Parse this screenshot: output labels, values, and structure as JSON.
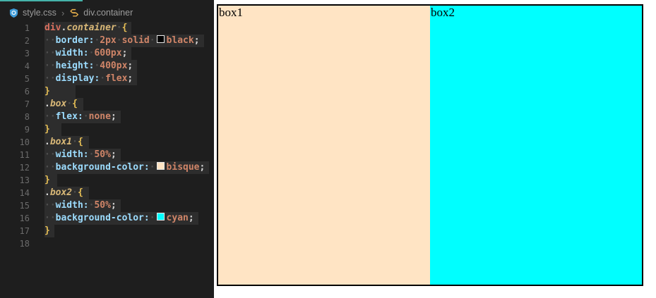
{
  "breadcrumb": {
    "file": "style.css",
    "separator": "›",
    "symbol": "div.container"
  },
  "editor": {
    "accent_color": "#45b3aa",
    "lines": [
      {
        "num": "1",
        "pad": 6,
        "tokens": [
          {
            "t": "el",
            "v": "div"
          },
          {
            "t": "dot",
            "v": "."
          },
          {
            "t": "cls",
            "v": "container"
          },
          {
            "t": "ws",
            "v": "·"
          },
          {
            "t": "brace",
            "v": "{"
          }
        ]
      },
      {
        "num": "2",
        "pad": 6,
        "tokens": [
          {
            "t": "ws",
            "v": "··"
          },
          {
            "t": "prop",
            "v": "border:"
          },
          {
            "t": "ws",
            "v": "·"
          },
          {
            "t": "val",
            "v": "2px"
          },
          {
            "t": "ws",
            "v": "·"
          },
          {
            "t": "val",
            "v": "solid"
          },
          {
            "t": "ws",
            "v": "·"
          },
          {
            "t": "swatch",
            "v": "#000000"
          },
          {
            "t": "val",
            "v": "black"
          },
          {
            "t": "semi",
            "v": ";"
          }
        ]
      },
      {
        "num": "3",
        "pad": 6,
        "tokens": [
          {
            "t": "ws",
            "v": "··"
          },
          {
            "t": "prop",
            "v": "width:"
          },
          {
            "t": "ws",
            "v": "·"
          },
          {
            "t": "val",
            "v": "600px"
          },
          {
            "t": "semi",
            "v": ";"
          }
        ]
      },
      {
        "num": "4",
        "pad": 6,
        "tokens": [
          {
            "t": "ws",
            "v": "··"
          },
          {
            "t": "prop",
            "v": "height:"
          },
          {
            "t": "ws",
            "v": "·"
          },
          {
            "t": "val",
            "v": "400px"
          },
          {
            "t": "semi",
            "v": ";"
          }
        ]
      },
      {
        "num": "5",
        "pad": 6,
        "tokens": [
          {
            "t": "ws",
            "v": "··"
          },
          {
            "t": "prop",
            "v": "display:"
          },
          {
            "t": "ws",
            "v": "·"
          },
          {
            "t": "val",
            "v": "flex"
          },
          {
            "t": "semi",
            "v": ";"
          }
        ]
      },
      {
        "num": "6",
        "pad": 36,
        "tokens": [
          {
            "t": "brace",
            "v": "}"
          }
        ]
      },
      {
        "num": "7",
        "pad": 8,
        "tokens": [
          {
            "t": "dot",
            "v": "."
          },
          {
            "t": "cls",
            "v": "box"
          },
          {
            "t": "ws",
            "v": "·"
          },
          {
            "t": "brace",
            "v": "{"
          }
        ]
      },
      {
        "num": "8",
        "pad": 6,
        "tokens": [
          {
            "t": "ws",
            "v": "··"
          },
          {
            "t": "prop",
            "v": "flex:"
          },
          {
            "t": "ws",
            "v": "·"
          },
          {
            "t": "val",
            "v": "none"
          },
          {
            "t": "semi",
            "v": ";"
          }
        ]
      },
      {
        "num": "9",
        "pad": 16,
        "tokens": [
          {
            "t": "brace",
            "v": "}"
          }
        ]
      },
      {
        "num": "10",
        "pad": 8,
        "tokens": [
          {
            "t": "dot",
            "v": "."
          },
          {
            "t": "cls",
            "v": "box1"
          },
          {
            "t": "ws",
            "v": "·"
          },
          {
            "t": "brace",
            "v": "{"
          }
        ]
      },
      {
        "num": "11",
        "pad": 6,
        "tokens": [
          {
            "t": "ws",
            "v": "··"
          },
          {
            "t": "prop",
            "v": "width:"
          },
          {
            "t": "ws",
            "v": "·"
          },
          {
            "t": "val",
            "v": "50%"
          },
          {
            "t": "semi",
            "v": ";"
          }
        ]
      },
      {
        "num": "12",
        "pad": 6,
        "tokens": [
          {
            "t": "ws",
            "v": "··"
          },
          {
            "t": "prop",
            "v": "background-color:"
          },
          {
            "t": "ws",
            "v": "·"
          },
          {
            "t": "swatch",
            "v": "#ffe4c4"
          },
          {
            "t": "val",
            "v": "bisque"
          },
          {
            "t": "semi",
            "v": ";"
          }
        ]
      },
      {
        "num": "13",
        "pad": 10,
        "tokens": [
          {
            "t": "brace",
            "v": "}"
          }
        ]
      },
      {
        "num": "14",
        "pad": 8,
        "tokens": [
          {
            "t": "dot",
            "v": "."
          },
          {
            "t": "cls",
            "v": "box2"
          },
          {
            "t": "ws",
            "v": "·"
          },
          {
            "t": "brace",
            "v": "{"
          }
        ]
      },
      {
        "num": "15",
        "pad": 6,
        "tokens": [
          {
            "t": "ws",
            "v": "··"
          },
          {
            "t": "prop",
            "v": "width:"
          },
          {
            "t": "ws",
            "v": "·"
          },
          {
            "t": "val",
            "v": "50%"
          },
          {
            "t": "semi",
            "v": ";"
          }
        ]
      },
      {
        "num": "16",
        "pad": 6,
        "tokens": [
          {
            "t": "ws",
            "v": "··"
          },
          {
            "t": "prop",
            "v": "background-color:"
          },
          {
            "t": "ws",
            "v": "·"
          },
          {
            "t": "swatch",
            "v": "#00ffff"
          },
          {
            "t": "val",
            "v": "cyan"
          },
          {
            "t": "semi",
            "v": ";"
          }
        ]
      },
      {
        "num": "17",
        "pad": 6,
        "tokens": [
          {
            "t": "brace",
            "v": "}"
          }
        ]
      },
      {
        "num": "18",
        "pad": 0,
        "tokens": []
      }
    ]
  },
  "preview": {
    "border_color": "#000000",
    "boxes": [
      {
        "label": "box1",
        "bg": "#ffe4c4"
      },
      {
        "label": "box2",
        "bg": "#00ffff"
      }
    ]
  }
}
